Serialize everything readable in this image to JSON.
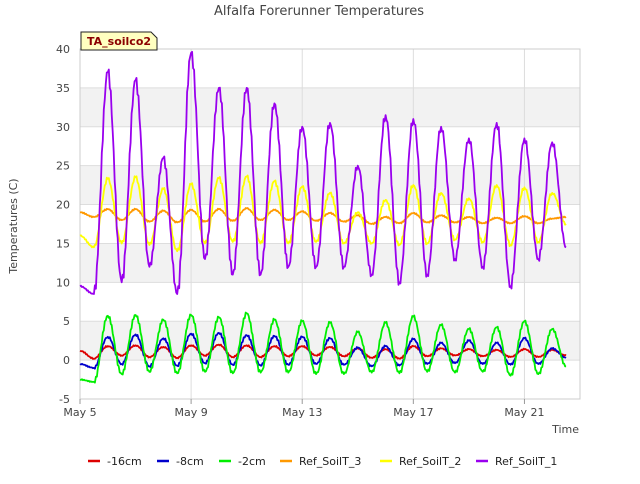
{
  "chart_data": {
    "type": "line",
    "title": "Alfalfa Forerunner Temperatures",
    "xlabel": "Time",
    "ylabel": "Temperatures (C)",
    "annotation": "TA_soilco2",
    "ylim": [
      -5,
      40
    ],
    "yticks": [
      -5,
      0,
      5,
      10,
      15,
      20,
      25,
      30,
      35,
      40
    ],
    "xlim": [
      "2024-05-05",
      "2024-05-23"
    ],
    "xticks": [
      "May 5",
      "May 9",
      "May 13",
      "May 17",
      "May 21"
    ],
    "grid": true,
    "legend_position": "bottom",
    "series": [
      {
        "name": "-16cm",
        "color": "#dd0000",
        "x": [
          "2024-05-05T00:00",
          "2024-05-05T12:00",
          "2024-05-06T00:00",
          "2024-05-06T12:00",
          "2024-05-07T00:00",
          "2024-05-07T12:00",
          "2024-05-08T00:00",
          "2024-05-08T12:00",
          "2024-05-09T00:00",
          "2024-05-09T12:00",
          "2024-05-10T00:00",
          "2024-05-10T12:00",
          "2024-05-11T00:00",
          "2024-05-11T12:00",
          "2024-05-12T00:00",
          "2024-05-12T12:00",
          "2024-05-13T00:00",
          "2024-05-13T12:00",
          "2024-05-14T00:00",
          "2024-05-14T12:00",
          "2024-05-15T00:00",
          "2024-05-15T12:00",
          "2024-05-16T00:00",
          "2024-05-16T12:00",
          "2024-05-17T00:00",
          "2024-05-17T12:00",
          "2024-05-18T00:00",
          "2024-05-18T12:00",
          "2024-05-19T00:00",
          "2024-05-19T12:00",
          "2024-05-20T00:00",
          "2024-05-20T12:00",
          "2024-05-21T00:00",
          "2024-05-21T12:00",
          "2024-05-22T00:00",
          "2024-05-22T12:00"
        ],
        "values": [
          1.2,
          0.2,
          1.8,
          0.6,
          1.9,
          0.4,
          1.7,
          0.3,
          1.9,
          0.6,
          2.0,
          0.4,
          1.9,
          0.4,
          1.8,
          0.5,
          1.8,
          0.6,
          1.7,
          0.5,
          1.5,
          0.3,
          1.4,
          0.2,
          1.8,
          0.5,
          1.5,
          0.6,
          1.4,
          0.5,
          1.3,
          0.4,
          1.4,
          0.4,
          1.3,
          0.6
        ]
      },
      {
        "name": "-8cm",
        "color": "#0000cc",
        "x": [
          "2024-05-05T00:00",
          "2024-05-05T12:00",
          "2024-05-06T00:00",
          "2024-05-06T12:00",
          "2024-05-07T00:00",
          "2024-05-07T12:00",
          "2024-05-08T00:00",
          "2024-05-08T12:00",
          "2024-05-09T00:00",
          "2024-05-09T12:00",
          "2024-05-10T00:00",
          "2024-05-10T12:00",
          "2024-05-11T00:00",
          "2024-05-11T12:00",
          "2024-05-12T00:00",
          "2024-05-12T12:00",
          "2024-05-13T00:00",
          "2024-05-13T12:00",
          "2024-05-14T00:00",
          "2024-05-14T12:00",
          "2024-05-15T00:00",
          "2024-05-15T12:00",
          "2024-05-16T00:00",
          "2024-05-16T12:00",
          "2024-05-17T00:00",
          "2024-05-17T12:00",
          "2024-05-18T00:00",
          "2024-05-18T12:00",
          "2024-05-19T00:00",
          "2024-05-19T12:00",
          "2024-05-20T00:00",
          "2024-05-20T12:00",
          "2024-05-21T00:00",
          "2024-05-21T12:00",
          "2024-05-22T00:00",
          "2024-05-22T12:00"
        ],
        "values": [
          -0.5,
          -1.0,
          3.0,
          -0.5,
          3.3,
          -0.8,
          2.8,
          -0.7,
          3.4,
          -0.4,
          3.5,
          -0.6,
          3.2,
          -0.7,
          3.1,
          -0.6,
          3.0,
          -0.5,
          2.8,
          -0.6,
          1.6,
          -0.8,
          1.8,
          -0.7,
          2.7,
          -0.5,
          2.2,
          -0.4,
          2.5,
          -0.5,
          2.2,
          -0.6,
          2.8,
          -0.5,
          1.5,
          0.3
        ]
      },
      {
        "name": "-2cm",
        "color": "#00ee00",
        "x": [
          "2024-05-05T00:00",
          "2024-05-05T12:00",
          "2024-05-06T00:00",
          "2024-05-06T12:00",
          "2024-05-07T00:00",
          "2024-05-07T12:00",
          "2024-05-08T00:00",
          "2024-05-08T12:00",
          "2024-05-09T00:00",
          "2024-05-09T12:00",
          "2024-05-10T00:00",
          "2024-05-10T12:00",
          "2024-05-11T00:00",
          "2024-05-11T12:00",
          "2024-05-12T00:00",
          "2024-05-12T12:00",
          "2024-05-13T00:00",
          "2024-05-13T12:00",
          "2024-05-14T00:00",
          "2024-05-14T12:00",
          "2024-05-15T00:00",
          "2024-05-15T12:00",
          "2024-05-16T00:00",
          "2024-05-16T12:00",
          "2024-05-17T00:00",
          "2024-05-17T12:00",
          "2024-05-18T00:00",
          "2024-05-18T12:00",
          "2024-05-19T00:00",
          "2024-05-19T12:00",
          "2024-05-20T00:00",
          "2024-05-20T12:00",
          "2024-05-21T00:00",
          "2024-05-21T12:00",
          "2024-05-22T00:00",
          "2024-05-22T12:00"
        ],
        "values": [
          -2.5,
          -2.8,
          5.7,
          -1.8,
          5.8,
          -1.5,
          5.2,
          -1.7,
          5.8,
          -1.5,
          5.5,
          -1.7,
          6.0,
          -1.6,
          5.2,
          -1.6,
          5.0,
          -1.8,
          4.8,
          -1.8,
          3.6,
          -1.6,
          4.8,
          -1.7,
          5.6,
          -1.5,
          4.5,
          -1.6,
          4.0,
          -1.5,
          4.2,
          -2.0,
          5.0,
          -1.8,
          4.0,
          -0.8
        ]
      },
      {
        "name": "Ref_SoilT_3",
        "color": "#ff9900",
        "x": [
          "2024-05-05T00:00",
          "2024-05-05T12:00",
          "2024-05-06T00:00",
          "2024-05-06T12:00",
          "2024-05-07T00:00",
          "2024-05-07T12:00",
          "2024-05-08T00:00",
          "2024-05-08T12:00",
          "2024-05-09T00:00",
          "2024-05-09T12:00",
          "2024-05-10T00:00",
          "2024-05-10T12:00",
          "2024-05-11T00:00",
          "2024-05-11T12:00",
          "2024-05-12T00:00",
          "2024-05-12T12:00",
          "2024-05-13T00:00",
          "2024-05-13T12:00",
          "2024-05-14T00:00",
          "2024-05-14T12:00",
          "2024-05-15T00:00",
          "2024-05-15T12:00",
          "2024-05-16T00:00",
          "2024-05-16T12:00",
          "2024-05-17T00:00",
          "2024-05-17T12:00",
          "2024-05-18T00:00",
          "2024-05-18T12:00",
          "2024-05-19T00:00",
          "2024-05-19T12:00",
          "2024-05-20T00:00",
          "2024-05-20T12:00",
          "2024-05-21T00:00",
          "2024-05-21T12:00",
          "2024-05-22T00:00",
          "2024-05-22T12:00"
        ],
        "values": [
          19.0,
          18.4,
          19.4,
          18.0,
          19.4,
          17.8,
          19.2,
          17.7,
          19.3,
          17.8,
          19.4,
          17.9,
          19.5,
          18.0,
          19.3,
          18.0,
          19.1,
          17.9,
          18.9,
          17.8,
          18.6,
          17.5,
          18.4,
          17.6,
          18.9,
          17.7,
          18.6,
          17.7,
          18.4,
          17.6,
          18.3,
          17.6,
          18.5,
          17.6,
          18.2,
          18.4
        ]
      },
      {
        "name": "Ref_SoilT_2",
        "color": "#ffff00",
        "x": [
          "2024-05-05T00:00",
          "2024-05-05T12:00",
          "2024-05-06T00:00",
          "2024-05-06T12:00",
          "2024-05-07T00:00",
          "2024-05-07T12:00",
          "2024-05-08T00:00",
          "2024-05-08T12:00",
          "2024-05-09T00:00",
          "2024-05-09T12:00",
          "2024-05-10T00:00",
          "2024-05-10T12:00",
          "2024-05-11T00:00",
          "2024-05-11T12:00",
          "2024-05-12T00:00",
          "2024-05-12T12:00",
          "2024-05-13T00:00",
          "2024-05-13T12:00",
          "2024-05-14T00:00",
          "2024-05-14T12:00",
          "2024-05-15T00:00",
          "2024-05-15T12:00",
          "2024-05-16T00:00",
          "2024-05-16T12:00",
          "2024-05-17T00:00",
          "2024-05-17T12:00",
          "2024-05-18T00:00",
          "2024-05-18T12:00",
          "2024-05-19T00:00",
          "2024-05-19T12:00",
          "2024-05-20T00:00",
          "2024-05-20T12:00",
          "2024-05-21T00:00",
          "2024-05-21T12:00",
          "2024-05-22T00:00",
          "2024-05-22T12:00"
        ],
        "values": [
          16.0,
          14.5,
          23.3,
          15.0,
          23.5,
          14.8,
          22.0,
          14.0,
          22.6,
          15.0,
          23.4,
          15.2,
          23.6,
          15.0,
          23.0,
          15.0,
          22.3,
          15.2,
          21.5,
          15.0,
          19.0,
          15.0,
          20.6,
          14.8,
          22.5,
          15.0,
          21.5,
          15.5,
          20.8,
          15.2,
          22.5,
          14.8,
          22.2,
          15.2,
          21.5,
          17.5
        ]
      },
      {
        "name": "Ref_SoilT_1",
        "color": "#9900ee",
        "x": [
          "2024-05-05T00:00",
          "2024-05-05T12:00",
          "2024-05-06T00:00",
          "2024-05-06T12:00",
          "2024-05-07T00:00",
          "2024-05-07T12:00",
          "2024-05-08T00:00",
          "2024-05-08T12:00",
          "2024-05-09T00:00",
          "2024-05-09T12:00",
          "2024-05-10T00:00",
          "2024-05-10T12:00",
          "2024-05-11T00:00",
          "2024-05-11T12:00",
          "2024-05-12T00:00",
          "2024-05-12T12:00",
          "2024-05-13T00:00",
          "2024-05-13T12:00",
          "2024-05-14T00:00",
          "2024-05-14T12:00",
          "2024-05-15T00:00",
          "2024-05-15T12:00",
          "2024-05-16T00:00",
          "2024-05-16T12:00",
          "2024-05-17T00:00",
          "2024-05-17T12:00",
          "2024-05-18T00:00",
          "2024-05-18T12:00",
          "2024-05-19T00:00",
          "2024-05-19T12:00",
          "2024-05-20T00:00",
          "2024-05-20T12:00",
          "2024-05-21T00:00",
          "2024-05-21T12:00",
          "2024-05-22T00:00",
          "2024-05-22T12:00"
        ],
        "values": [
          9.5,
          8.5,
          37.0,
          10.0,
          36.0,
          12.0,
          26.0,
          8.5,
          39.5,
          13.0,
          35.0,
          11.0,
          35.0,
          11.0,
          33.0,
          12.0,
          30.0,
          12.0,
          30.5,
          12.0,
          25.0,
          11.0,
          31.5,
          10.0,
          31.0,
          11.0,
          30.0,
          13.0,
          28.5,
          12.0,
          30.5,
          9.5,
          28.5,
          13.0,
          28.0,
          14.5
        ]
      }
    ]
  }
}
